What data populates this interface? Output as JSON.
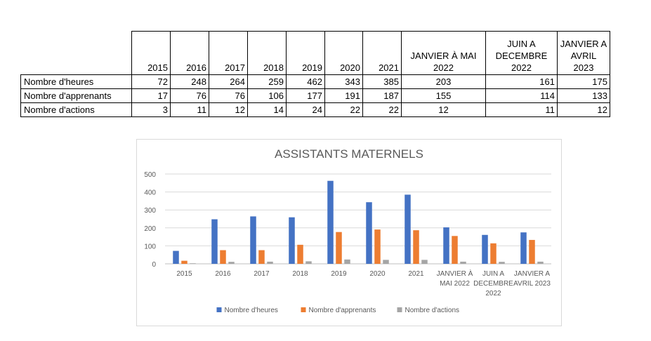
{
  "table": {
    "columns": [
      "2015",
      "2016",
      "2017",
      "2018",
      "2019",
      "2020",
      "2021",
      "JANVIER À MAI 2022",
      "JUIN A DECEMBRE 2022",
      "JANVIER A AVRIL 2023"
    ],
    "rows": [
      {
        "label": "Nombre d'heures",
        "values": [
          "72",
          "248",
          "264",
          "259",
          "462",
          "343",
          "385",
          "203",
          "161",
          "175"
        ]
      },
      {
        "label": "Nombre d'apprenants",
        "values": [
          "17",
          "76",
          "76",
          "106",
          "177",
          "191",
          "187",
          "155",
          "114",
          "133"
        ]
      },
      {
        "label": "Nombre d'actions",
        "values": [
          "3",
          "11",
          "12",
          "14",
          "24",
          "22",
          "22",
          "12",
          "11",
          "12"
        ]
      }
    ]
  },
  "chart_data": {
    "type": "bar",
    "title": "ASSISTANTS MATERNELS",
    "categories": [
      "2015",
      "2016",
      "2017",
      "2018",
      "2019",
      "2020",
      "2021",
      "JANVIER À MAI 2022",
      "JUIN A DECEMBRE 2022",
      "JANVIER A AVRIL 2023"
    ],
    "series": [
      {
        "name": "Nombre d'heures",
        "color": "#4472C4",
        "values": [
          72,
          248,
          264,
          259,
          462,
          343,
          385,
          203,
          161,
          175
        ]
      },
      {
        "name": "Nombre d'apprenants",
        "color": "#ED7D31",
        "values": [
          17,
          76,
          76,
          106,
          177,
          191,
          187,
          155,
          114,
          133
        ]
      },
      {
        "name": "Nombre d'actions",
        "color": "#A5A5A5",
        "values": [
          3,
          11,
          12,
          14,
          24,
          22,
          22,
          12,
          11,
          12
        ]
      }
    ],
    "yticks": [
      "0",
      "100",
      "200",
      "300",
      "400",
      "500"
    ],
    "ylim": [
      0,
      500
    ],
    "grid": true,
    "legend": "bottom"
  }
}
